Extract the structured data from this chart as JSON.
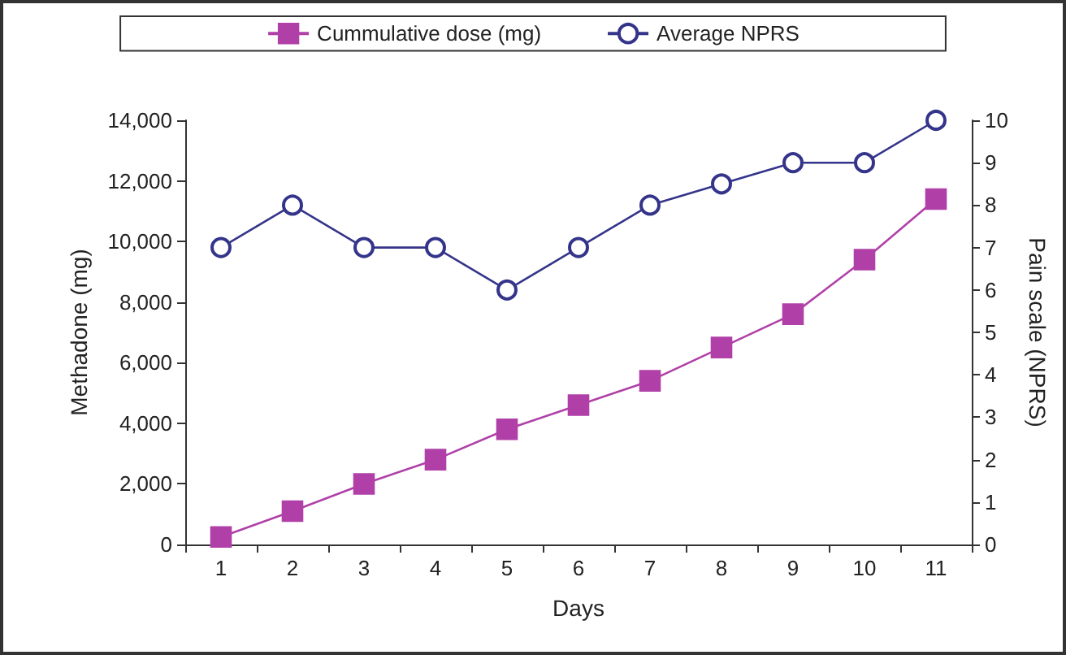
{
  "chart_data": {
    "type": "line",
    "xlabel": "Days",
    "ylabel": "Methadone (mg)",
    "y2label": "Pain scale (NPRS)",
    "categories": [
      "1",
      "2",
      "3",
      "4",
      "5",
      "6",
      "7",
      "8",
      "9",
      "10",
      "11"
    ],
    "series": [
      {
        "name": "Cummulative dose (mg)",
        "color": "#b040a8",
        "marker": "square",
        "values": [
          250,
          1100,
          2000,
          2800,
          3800,
          4600,
          5400,
          6500,
          7600,
          9400,
          11400
        ]
      },
      {
        "name": "Average NPRS",
        "color": "#34348a",
        "marker": "circle",
        "axis": "y2",
        "values": [
          7,
          8,
          7,
          7,
          6,
          7,
          8,
          8.5,
          9,
          9,
          10
        ]
      }
    ],
    "ylim": [
      0,
      14000
    ],
    "yticks": [
      0,
      {
        "value": 2000,
        "label": "2,000"
      },
      {
        "value": 4000,
        "label": "4,000"
      },
      {
        "value": 6000,
        "label": "6,000"
      },
      {
        "value": 8000,
        "label": "8,000"
      },
      {
        "value": 10000,
        "label": "10,000"
      },
      {
        "value": 12000,
        "label": "12,000"
      },
      {
        "value": 14000,
        "label": "14,000"
      }
    ],
    "y2lim": [
      0,
      10
    ],
    "y2ticks": [
      0,
      1,
      2,
      3,
      4,
      5,
      6,
      7,
      8,
      9,
      10
    ],
    "legend": "top",
    "grid": false
  }
}
